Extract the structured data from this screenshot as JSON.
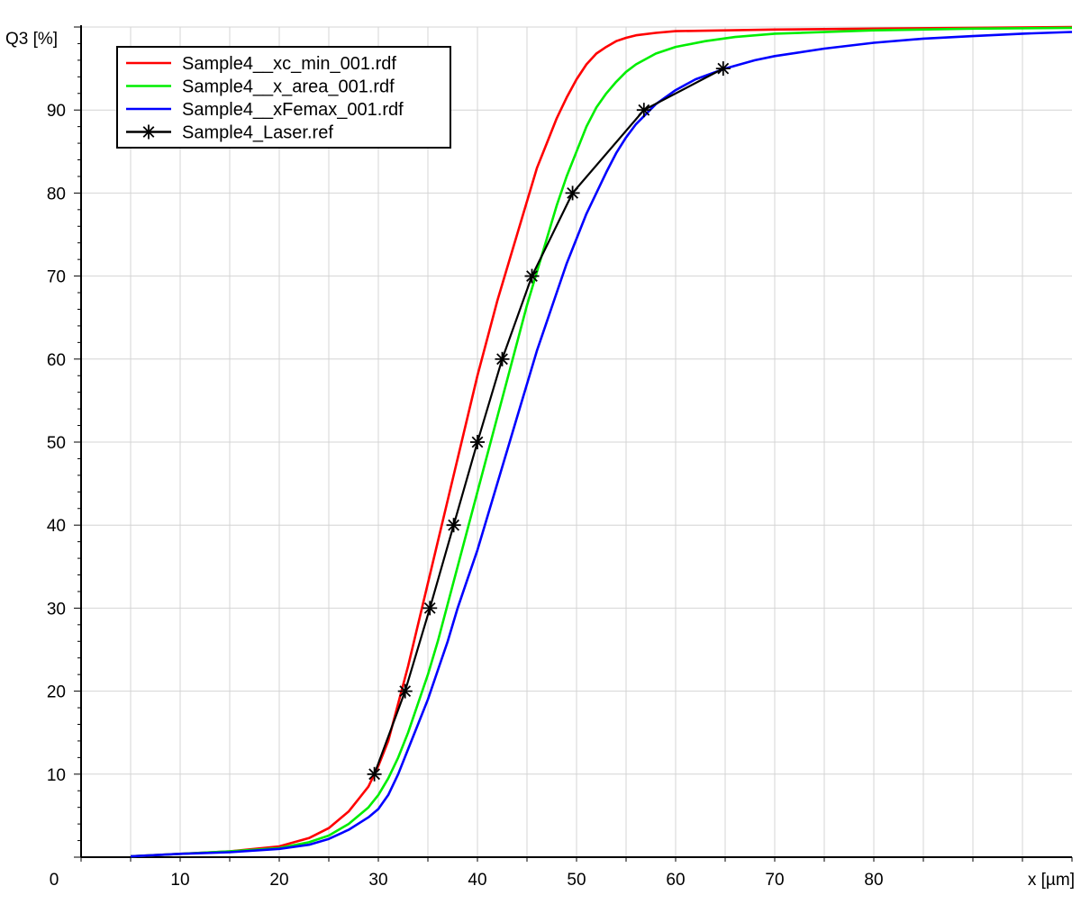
{
  "chart_data": {
    "type": "line",
    "title": "",
    "ylabel": "Q3 [%]",
    "xlabel": "x [µm]",
    "xlim": [
      0,
      100
    ],
    "ylim": [
      0,
      100
    ],
    "x_ticks": [
      {
        "value": 0,
        "label": "0"
      },
      {
        "value": 10,
        "label": "10"
      },
      {
        "value": 20,
        "label": "20"
      },
      {
        "value": 30,
        "label": "30"
      },
      {
        "value": 40,
        "label": "40"
      },
      {
        "value": 50,
        "label": "50"
      },
      {
        "value": 60,
        "label": "60"
      },
      {
        "value": 70,
        "label": "70"
      },
      {
        "value": 80,
        "label": "80"
      }
    ],
    "y_ticks": [
      {
        "value": 10,
        "label": "10"
      },
      {
        "value": 20,
        "label": "20"
      },
      {
        "value": 30,
        "label": "30"
      },
      {
        "value": 40,
        "label": "40"
      },
      {
        "value": 50,
        "label": "50"
      },
      {
        "value": 60,
        "label": "60"
      },
      {
        "value": 70,
        "label": "70"
      },
      {
        "value": 80,
        "label": "80"
      },
      {
        "value": 90,
        "label": "90"
      }
    ],
    "x_grid_step": 5,
    "grid": true,
    "legend_position": "top-left",
    "series": [
      {
        "name": "Sample4__xc_min_001.rdf",
        "color": "#ff0000",
        "marker": "none",
        "points": [
          [
            5,
            0.1
          ],
          [
            10,
            0.4
          ],
          [
            15,
            0.7
          ],
          [
            20,
            1.3
          ],
          [
            23,
            2.3
          ],
          [
            25,
            3.5
          ],
          [
            27,
            5.5
          ],
          [
            28,
            7
          ],
          [
            29,
            8.5
          ],
          [
            30,
            11
          ],
          [
            31,
            14
          ],
          [
            32,
            18.5
          ],
          [
            33,
            23
          ],
          [
            34,
            28
          ],
          [
            35,
            33
          ],
          [
            36,
            38
          ],
          [
            37,
            43
          ],
          [
            38,
            48
          ],
          [
            39,
            53
          ],
          [
            40,
            58
          ],
          [
            41,
            62.5
          ],
          [
            42,
            67
          ],
          [
            43,
            71
          ],
          [
            44,
            75
          ],
          [
            45,
            79
          ],
          [
            46,
            83
          ],
          [
            47,
            86
          ],
          [
            48,
            89
          ],
          [
            49,
            91.5
          ],
          [
            50,
            93.7
          ],
          [
            51,
            95.5
          ],
          [
            52,
            96.8
          ],
          [
            53,
            97.6
          ],
          [
            54,
            98.3
          ],
          [
            55,
            98.7
          ],
          [
            56,
            99
          ],
          [
            58,
            99.3
          ],
          [
            60,
            99.5
          ],
          [
            70,
            99.7
          ],
          [
            80,
            99.8
          ],
          [
            90,
            99.9
          ],
          [
            100,
            100
          ]
        ]
      },
      {
        "name": "Sample4__x_area_001.rdf",
        "color": "#00ee00",
        "marker": "none",
        "points": [
          [
            5,
            0.1
          ],
          [
            10,
            0.4
          ],
          [
            15,
            0.7
          ],
          [
            20,
            1.1
          ],
          [
            23,
            1.8
          ],
          [
            25,
            2.6
          ],
          [
            27,
            4
          ],
          [
            29,
            6
          ],
          [
            30,
            7.5
          ],
          [
            31,
            9.5
          ],
          [
            32,
            12
          ],
          [
            33,
            15
          ],
          [
            34,
            18.5
          ],
          [
            35,
            22
          ],
          [
            36,
            26
          ],
          [
            37,
            30.5
          ],
          [
            38,
            35
          ],
          [
            39,
            39.5
          ],
          [
            40,
            44
          ],
          [
            41,
            48.5
          ],
          [
            42,
            53
          ],
          [
            43,
            57.5
          ],
          [
            44,
            62
          ],
          [
            45,
            66.5
          ],
          [
            46,
            70.5
          ],
          [
            47,
            74.5
          ],
          [
            48,
            78.5
          ],
          [
            49,
            82
          ],
          [
            50,
            85
          ],
          [
            51,
            88
          ],
          [
            52,
            90.3
          ],
          [
            53,
            92
          ],
          [
            54,
            93.4
          ],
          [
            55,
            94.6
          ],
          [
            56,
            95.5
          ],
          [
            58,
            96.8
          ],
          [
            60,
            97.6
          ],
          [
            63,
            98.3
          ],
          [
            66,
            98.8
          ],
          [
            70,
            99.2
          ],
          [
            80,
            99.6
          ],
          [
            90,
            99.8
          ],
          [
            100,
            99.9
          ]
        ]
      },
      {
        "name": "Sample4__xFemax_001.rdf",
        "color": "#0000ff",
        "marker": "none",
        "points": [
          [
            5,
            0.1
          ],
          [
            10,
            0.4
          ],
          [
            15,
            0.6
          ],
          [
            20,
            1
          ],
          [
            23,
            1.5
          ],
          [
            25,
            2.2
          ],
          [
            27,
            3.3
          ],
          [
            29,
            4.8
          ],
          [
            30,
            5.8
          ],
          [
            31,
            7.5
          ],
          [
            32,
            10
          ],
          [
            33,
            13
          ],
          [
            34,
            16
          ],
          [
            35,
            19
          ],
          [
            36,
            22.5
          ],
          [
            37,
            26
          ],
          [
            38,
            30
          ],
          [
            39,
            33.5
          ],
          [
            40,
            37
          ],
          [
            41,
            41
          ],
          [
            42,
            45
          ],
          [
            43,
            49
          ],
          [
            44,
            53
          ],
          [
            45,
            57
          ],
          [
            46,
            61
          ],
          [
            47,
            64.5
          ],
          [
            48,
            68
          ],
          [
            49,
            71.5
          ],
          [
            50,
            74.5
          ],
          [
            51,
            77.5
          ],
          [
            52,
            80
          ],
          [
            53,
            82.5
          ],
          [
            54,
            84.8
          ],
          [
            55,
            86.7
          ],
          [
            56,
            88.3
          ],
          [
            58,
            90.7
          ],
          [
            60,
            92.4
          ],
          [
            62,
            93.7
          ],
          [
            65,
            95
          ],
          [
            68,
            96
          ],
          [
            70,
            96.5
          ],
          [
            75,
            97.4
          ],
          [
            80,
            98.1
          ],
          [
            85,
            98.6
          ],
          [
            90,
            98.9
          ],
          [
            95,
            99.2
          ],
          [
            100,
            99.4
          ]
        ]
      },
      {
        "name": "Sample4_Laser.ref",
        "color": "#000000",
        "marker": "star",
        "points": [
          [
            29.6,
            10
          ],
          [
            32.7,
            20
          ],
          [
            35.2,
            30
          ],
          [
            37.6,
            40
          ],
          [
            40,
            50
          ],
          [
            42.5,
            60
          ],
          [
            45.5,
            70
          ],
          [
            49.6,
            80
          ],
          [
            56.8,
            90
          ],
          [
            64.8,
            95
          ]
        ]
      }
    ]
  }
}
